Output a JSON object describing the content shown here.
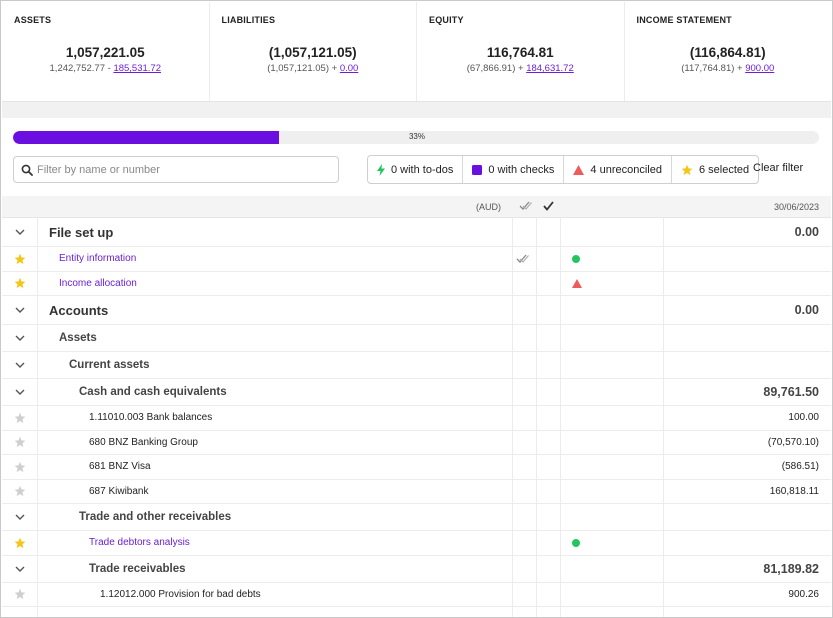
{
  "summary": {
    "assets": {
      "title": "ASSETS",
      "value": "1,057,221.05",
      "sub_text": "1,242,752.77 - ",
      "sub_link": "185,531.72"
    },
    "liabilities": {
      "title": "LIABILITIES",
      "value": "(1,057,121.05)",
      "sub_text": "(1,057,121.05) + ",
      "sub_link": "0.00"
    },
    "equity": {
      "title": "EQUITY",
      "value": "116,764.81",
      "sub_text": "(67,866.91) + ",
      "sub_link": "184,631.72"
    },
    "income": {
      "title": "INCOME STATEMENT",
      "value": "(116,864.81)",
      "sub_text": "(117,764.81) + ",
      "sub_link": "900.00"
    }
  },
  "progress": {
    "percent": 33,
    "label": "33%",
    "fill_color": "#6b0fe0"
  },
  "filter": {
    "search_placeholder": "Filter by name or number",
    "todos_label": "0 with to-dos",
    "checks_label": "0 with checks",
    "unreconciled_label": "4 unreconciled",
    "selected_label": "6 selected",
    "clear_label": "Clear filter"
  },
  "table": {
    "currency_label": "(AUD)",
    "date_label": "30/06/2023",
    "rows": [
      {
        "kind": "group",
        "level": 1,
        "name": "File set up",
        "amount": "0.00"
      },
      {
        "kind": "link",
        "starred": true,
        "name": "Entity information",
        "check": true,
        "status": "green-dot"
      },
      {
        "kind": "link",
        "starred": true,
        "name": "Income allocation",
        "status": "red-triangle"
      },
      {
        "kind": "group",
        "level": 1,
        "name": "Accounts",
        "amount": "0.00"
      },
      {
        "kind": "group",
        "level": 2,
        "indent": 0,
        "name": "Assets"
      },
      {
        "kind": "group",
        "level": 2,
        "indent": 1,
        "name": "Current assets"
      },
      {
        "kind": "group",
        "level": 2,
        "indent": 2,
        "name": "Cash and cash equivalents",
        "amount": "89,761.50"
      },
      {
        "kind": "leaf",
        "starred": false,
        "name": "1.11010.003 Bank balances",
        "amount": "100.00"
      },
      {
        "kind": "leaf",
        "starred": false,
        "name": "680 BNZ Banking Group",
        "amount": "(70,570.10)"
      },
      {
        "kind": "leaf",
        "starred": false,
        "name": "681 BNZ Visa",
        "amount": "(586.51)"
      },
      {
        "kind": "leaf",
        "starred": false,
        "name": "687 Kiwibank",
        "amount": "160,818.11"
      },
      {
        "kind": "group",
        "level": 2,
        "indent": 2,
        "name": "Trade and other receivables"
      },
      {
        "kind": "link",
        "starred": true,
        "indent": 3,
        "name": "Trade debtors analysis",
        "status": "green-dot"
      },
      {
        "kind": "group",
        "level": 2,
        "indent": 3,
        "name": "Trade receivables",
        "amount": "81,189.82"
      },
      {
        "kind": "leaf",
        "starred": false,
        "indent": 4,
        "name": "1.12012.000 Provision for bad debts",
        "amount": "900.26"
      }
    ]
  },
  "colors": {
    "accent": "#6b1fd6",
    "star": "#f5c518",
    "star_off": "#cfcfcf",
    "success": "#22c55e",
    "danger": "#ef5b5b",
    "todo": "#22c55e"
  },
  "icons": {
    "search": "search-icon",
    "todo": "lightning-icon",
    "check": "square-check-icon",
    "unreconciled": "warning-triangle-icon",
    "selected": "star-icon",
    "expand": "chevron-down-icon",
    "reviewed": "double-check-icon",
    "done": "check-icon"
  }
}
